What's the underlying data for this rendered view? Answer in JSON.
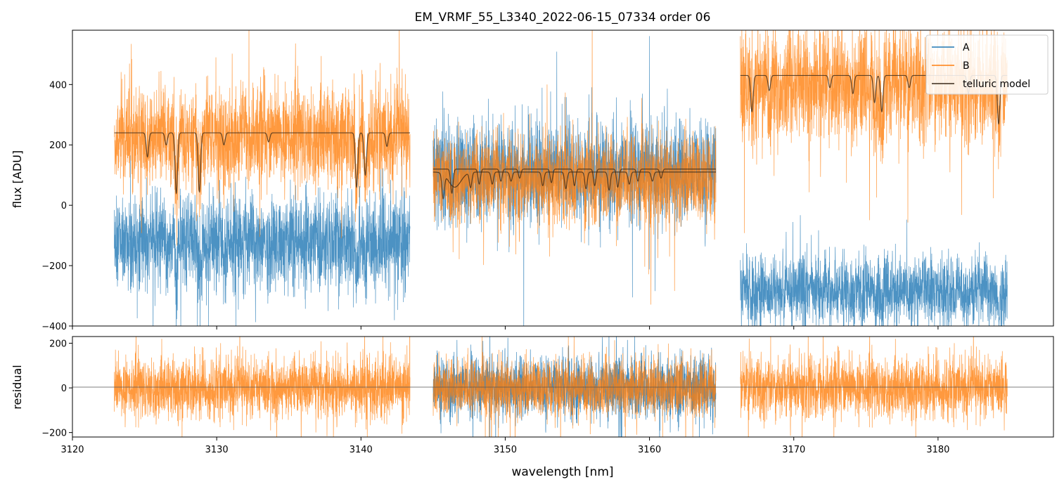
{
  "title": "EM_VRMF_55_L3340_2022-06-15_07334  order 06",
  "colors": {
    "A": "#1f77b4",
    "B": "#ff7f0e",
    "telluric": "#3a2a1a",
    "axis": "#000000"
  },
  "chart_data": [
    {
      "type": "line",
      "panel": "main",
      "title": "EM_VRMF_55_L3340_2022-06-15_07334  order 06",
      "xlabel": "",
      "ylabel": "flux [ADU]",
      "xlim": [
        3120,
        3188
      ],
      "ylim": [
        -400,
        580
      ],
      "yticks": [
        -400,
        -200,
        0,
        200,
        400
      ],
      "xticks": [
        3120,
        3130,
        3140,
        3150,
        3160,
        3170,
        3180
      ],
      "legend": {
        "placement": "top-right",
        "entries": [
          "A",
          "B",
          "telluric model"
        ]
      },
      "segments": [
        {
          "x_range": [
            3122.9,
            3143.4
          ],
          "A_mean": -120,
          "A_noise": 75,
          "B_mean": 230,
          "B_noise": 80,
          "model_continuum": 240,
          "absorption_lines": [
            {
              "center": 3125.2,
              "depth": 80
            },
            {
              "center": 3126.5,
              "depth": 40
            },
            {
              "center": 3127.2,
              "depth": 200
            },
            {
              "center": 3128.8,
              "depth": 195
            },
            {
              "center": 3130.5,
              "depth": 40
            },
            {
              "center": 3133.6,
              "depth": 30
            },
            {
              "center": 3139.7,
              "depth": 180
            },
            {
              "center": 3140.3,
              "depth": 140
            },
            {
              "center": 3141.8,
              "depth": 45
            }
          ]
        },
        {
          "x_range": [
            3145.0,
            3164.6
          ],
          "A_mean": 110,
          "A_noise": 80,
          "B_mean": 90,
          "B_noise": 70,
          "model_continuum": 120,
          "model2_continuum": 110,
          "absorption_lines": [
            {
              "center": 3146.3,
              "depth": 80
            },
            {
              "center": 3148.2,
              "depth": 50
            },
            {
              "center": 3149.7,
              "depth": 40
            },
            {
              "center": 3151.0,
              "depth": 30
            },
            {
              "center": 3153.2,
              "depth": 45
            },
            {
              "center": 3154.8,
              "depth": 55
            },
            {
              "center": 3156.2,
              "depth": 55
            },
            {
              "center": 3157.8,
              "depth": 60
            },
            {
              "center": 3159.2,
              "depth": 40
            },
            {
              "center": 3160.8,
              "depth": 30
            }
          ]
        },
        {
          "x_range": [
            3166.3,
            3184.8
          ],
          "A_mean": -280,
          "A_noise": 55,
          "B_mean": 400,
          "B_noise": 90,
          "model_continuum": 430,
          "absorption_lines": [
            {
              "center": 3167.1,
              "depth": 120
            },
            {
              "center": 3168.3,
              "depth": 50
            },
            {
              "center": 3172.5,
              "depth": 40
            },
            {
              "center": 3174.1,
              "depth": 60
            },
            {
              "center": 3175.6,
              "depth": 90
            },
            {
              "center": 3176.1,
              "depth": 120
            },
            {
              "center": 3178.0,
              "depth": 40
            },
            {
              "center": 3182.1,
              "depth": 60
            },
            {
              "center": 3184.2,
              "depth": 160
            }
          ]
        }
      ]
    },
    {
      "type": "line",
      "panel": "residual",
      "xlabel": "wavelength [nm]",
      "ylabel": "residual",
      "xlim": [
        3120,
        3188
      ],
      "ylim": [
        -220,
        230
      ],
      "yticks": [
        -200,
        0,
        200
      ],
      "xticks": [
        3120,
        3130,
        3140,
        3150,
        3160,
        3170,
        3180
      ],
      "xtick_labels": [
        "3120",
        "3130",
        "3140",
        "3150",
        "3160",
        "3170",
        "3180"
      ],
      "ytick_labels": [
        "−200",
        "0",
        "200"
      ],
      "zero_line": 0,
      "segments": [
        {
          "x_range": [
            3122.9,
            3143.4
          ],
          "noise": 70
        },
        {
          "x_range": [
            3145.0,
            3164.6
          ],
          "noise": 65
        },
        {
          "x_range": [
            3166.3,
            3184.8
          ],
          "noise": 70
        }
      ]
    }
  ],
  "main_ytick_labels": [
    "−400",
    "−200",
    "0",
    "200",
    "400"
  ]
}
